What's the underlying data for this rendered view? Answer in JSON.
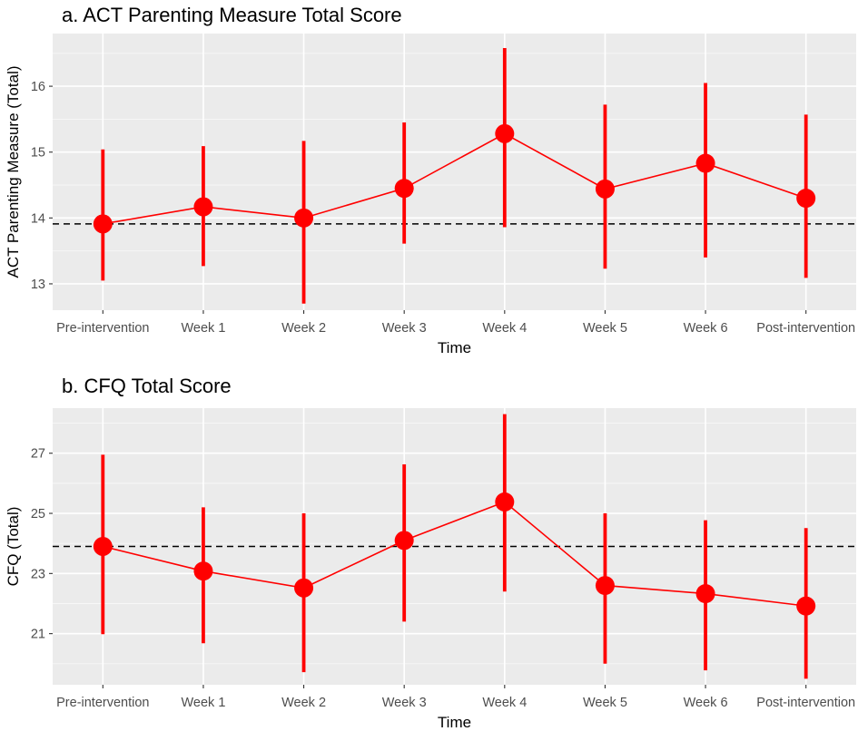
{
  "chart_data": [
    {
      "type": "line",
      "title": "a. ACT Parenting Measure Total Score",
      "xlabel": "Time",
      "ylabel": "ACT Parenting Measure (Total)",
      "categories": [
        "Pre-intervention",
        "Week 1",
        "Week 2",
        "Week 3",
        "Week 4",
        "Week 5",
        "Week 6",
        "Post-intervention"
      ],
      "ylim": [
        12.6,
        16.8
      ],
      "yticks": [
        13,
        14,
        15,
        16
      ],
      "series": [
        {
          "name": "mean",
          "values": [
            13.91,
            14.17,
            14.0,
            14.45,
            15.28,
            14.44,
            14.83,
            14.3
          ],
          "lower": [
            13.05,
            13.27,
            12.7,
            13.61,
            13.86,
            13.23,
            13.4,
            13.09
          ],
          "upper": [
            15.04,
            15.09,
            15.17,
            15.45,
            16.58,
            15.72,
            16.05,
            15.57
          ],
          "color": "#ff0000"
        }
      ],
      "reference_line": {
        "value": 13.91,
        "style": "dashed"
      }
    },
    {
      "type": "line",
      "title": "b. CFQ Total Score",
      "xlabel": "Time",
      "ylabel": "CFQ (Total)",
      "categories": [
        "Pre-intervention",
        "Week 1",
        "Week 2",
        "Week 3",
        "Week 4",
        "Week 5",
        "Week 6",
        "Post-intervention"
      ],
      "ylim": [
        19.3,
        28.5
      ],
      "yticks": [
        21,
        23,
        25,
        27
      ],
      "series": [
        {
          "name": "mean",
          "values": [
            23.9,
            23.08,
            22.52,
            24.1,
            25.38,
            22.6,
            22.33,
            21.92
          ],
          "lower": [
            20.98,
            20.68,
            19.72,
            21.4,
            22.4,
            20.0,
            19.78,
            19.5
          ],
          "upper": [
            26.95,
            25.2,
            25.0,
            26.63,
            28.3,
            25.0,
            24.77,
            24.51
          ],
          "color": "#ff0000"
        }
      ],
      "reference_line": {
        "value": 23.9,
        "style": "dashed"
      }
    }
  ]
}
